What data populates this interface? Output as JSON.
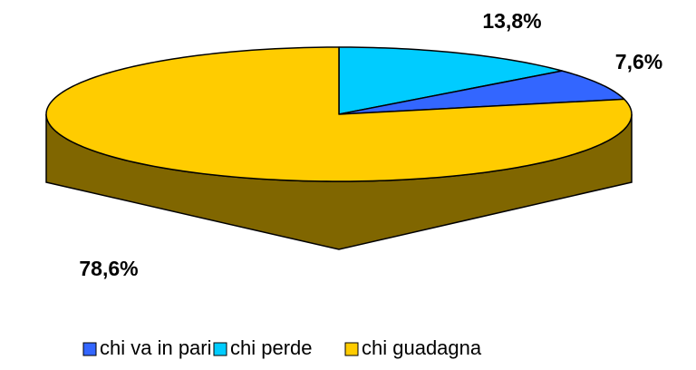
{
  "chart_data": {
    "type": "pie3d",
    "categories": [
      "chi perde",
      "chi va in pari",
      "chi guadagna"
    ],
    "values": [
      13.8,
      7.6,
      78.6
    ],
    "value_labels": [
      "13,8%",
      "7,6%",
      "78,6%"
    ],
    "colors": [
      "#00ccff",
      "#3366ff",
      "#ffcc00"
    ],
    "side_colors": [
      "#007a99",
      "#1f3d99",
      "#806600"
    ],
    "legend": "bottom"
  }
}
